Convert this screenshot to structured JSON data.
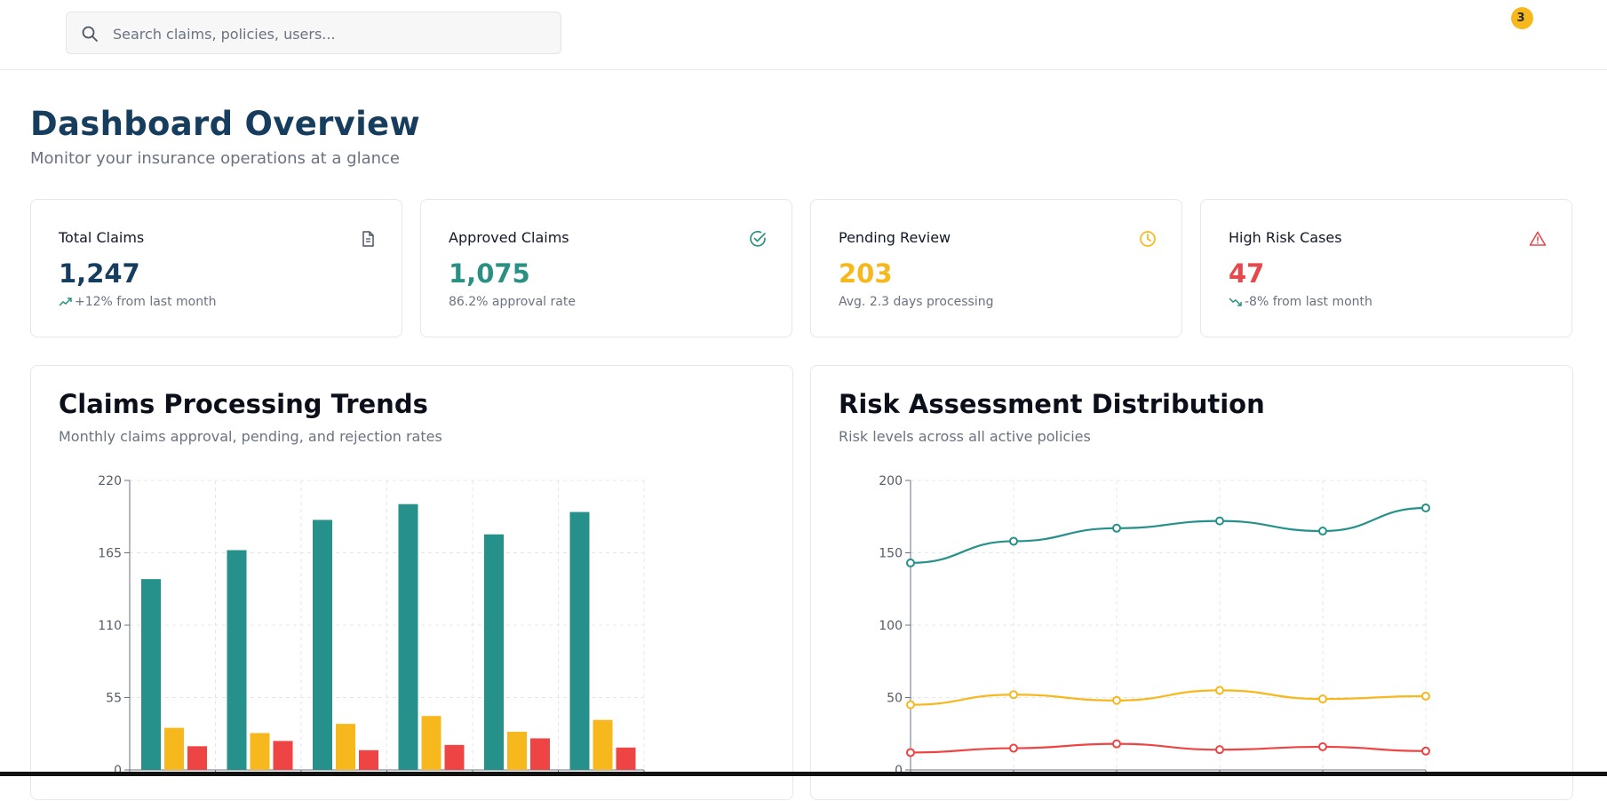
{
  "search": {
    "placeholder": "Search claims, policies, users..."
  },
  "notifications": {
    "count": "3"
  },
  "page": {
    "title": "Dashboard Overview",
    "subtitle": "Monitor your insurance operations at a glance"
  },
  "stats": [
    {
      "label": "Total Claims",
      "value": "1,247",
      "sub": "+12% from last month",
      "icon": "document-icon",
      "color": "#163d5e"
    },
    {
      "label": "Approved Claims",
      "value": "1,075",
      "sub": "86.2% approval rate",
      "icon": "check-circle-icon",
      "color": "#2a9084"
    },
    {
      "label": "Pending Review",
      "value": "203",
      "sub": "Avg. 2.3 days processing",
      "icon": "clock-icon",
      "color": "#f6b81c"
    },
    {
      "label": "High Risk Cases",
      "value": "47",
      "sub": "-8% from last month",
      "icon": "alert-triangle-icon",
      "color": "#e5484d"
    }
  ],
  "colors": {
    "teal": "#26918a",
    "yellow": "#f6b81c",
    "red": "#ef4444"
  },
  "panels": {
    "claims": {
      "title": "Claims Processing Trends",
      "subtitle": "Monthly claims approval, pending, and rejection rates"
    },
    "risk": {
      "title": "Risk Assessment Distribution",
      "subtitle": "Risk levels across all active policies"
    }
  },
  "chart_data": [
    {
      "type": "bar",
      "ylim": [
        0,
        220
      ],
      "yticks": [
        0,
        55,
        110,
        165,
        220
      ],
      "grid": true,
      "series": [
        {
          "values": [
            145,
            167,
            190,
            202,
            179,
            196
          ],
          "color": "#26918a"
        },
        {
          "values": [
            32,
            28,
            35,
            41,
            29,
            38
          ],
          "color": "#f6b81c"
        },
        {
          "values": [
            18,
            22,
            15,
            19,
            24,
            17
          ],
          "color": "#ef4444"
        }
      ]
    },
    {
      "type": "line",
      "ylim": [
        0,
        200
      ],
      "yticks": [
        0,
        50,
        100,
        150,
        200
      ],
      "grid": true,
      "series": [
        {
          "values": [
            143,
            158,
            167,
            172,
            165,
            181
          ],
          "color": "#26918a"
        },
        {
          "values": [
            45,
            52,
            48,
            55,
            49,
            51
          ],
          "color": "#f6b81c"
        },
        {
          "values": [
            12,
            15,
            18,
            14,
            16,
            13
          ],
          "color": "#ef4444"
        }
      ]
    }
  ]
}
